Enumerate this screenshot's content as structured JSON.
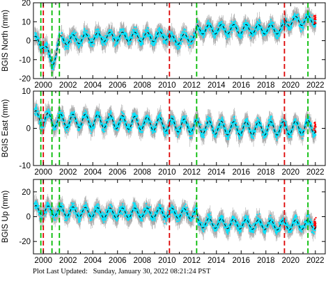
{
  "footer": {
    "label": "Plot Last Updated:",
    "timestamp": "Sunday, January 30, 2022 08:21:24 PST"
  },
  "colors": {
    "observations": "#00e5ff",
    "error_bars": "#aaaaaa",
    "model": "#000000",
    "equipment_change": "#00bb00",
    "earthquake_offset": "#dd0000",
    "recent_points": "#ff0000"
  },
  "chart_data": [
    {
      "type": "scatter",
      "ylabel": "BGIS North (mm)",
      "xlim": [
        1999.2,
        2022.8
      ],
      "ylim": [
        -20,
        20
      ],
      "yticks": [
        "-20",
        "-10",
        "0",
        "10",
        "20"
      ],
      "xticks": [
        "2000",
        "2002",
        "2004",
        "2006",
        "2008",
        "2010",
        "2012",
        "2014",
        "2016",
        "2018",
        "2020",
        "2022"
      ],
      "red_lines": [
        2000.0,
        2010.2,
        2019.5
      ],
      "green_lines": [
        1999.8,
        2000.7,
        2001.3,
        2012.4,
        2021.4
      ],
      "trend": [
        [
          1999.3,
          0
        ],
        [
          2000.1,
          -2
        ],
        [
          2000.7,
          -13
        ],
        [
          2001.3,
          0
        ],
        [
          2003,
          1
        ],
        [
          2005,
          2
        ],
        [
          2007,
          2
        ],
        [
          2009,
          2
        ],
        [
          2010.2,
          3
        ],
        [
          2010.3,
          0
        ],
        [
          2012.3,
          2
        ],
        [
          2012.4,
          6
        ],
        [
          2014,
          6
        ],
        [
          2016,
          6
        ],
        [
          2018,
          6
        ],
        [
          2019.5,
          6
        ],
        [
          2019.6,
          10
        ],
        [
          2022,
          11
        ]
      ],
      "amplitude": 2.5
    },
    {
      "type": "scatter",
      "ylabel": "BGIS East (mm)",
      "xlim": [
        1999.2,
        2022.8
      ],
      "ylim": [
        -10,
        10
      ],
      "yticks": [
        "-10",
        "0",
        "10"
      ],
      "xticks": [
        "2000",
        "2002",
        "2004",
        "2006",
        "2008",
        "2010",
        "2012",
        "2014",
        "2016",
        "2018",
        "2020",
        "2022"
      ],
      "red_lines": [
        2000.0,
        2010.2,
        2019.5
      ],
      "green_lines": [
        1999.8,
        2000.7,
        2001.3,
        2012.4,
        2021.4
      ],
      "trend": [
        [
          1999.3,
          3
        ],
        [
          2001,
          2
        ],
        [
          2004,
          2
        ],
        [
          2007,
          1.5
        ],
        [
          2010,
          1
        ],
        [
          2012.4,
          0.5
        ],
        [
          2015,
          0
        ],
        [
          2018,
          0
        ],
        [
          2019.5,
          0
        ],
        [
          2022,
          0.5
        ]
      ],
      "amplitude": 1.8
    },
    {
      "type": "scatter",
      "ylabel": "BGIS Up (mm)",
      "xlim": [
        1999.2,
        2022.8
      ],
      "ylim": [
        -30,
        30
      ],
      "yticks": [
        "-20",
        "0",
        "20"
      ],
      "xticks": [
        "2000",
        "2002",
        "2004",
        "2006",
        "2008",
        "2010",
        "2012",
        "2014",
        "2016",
        "2018",
        "2020",
        "2022"
      ],
      "red_lines": [
        2000.0,
        2010.2,
        2019.5
      ],
      "green_lines": [
        1999.8,
        2000.7,
        2001.3,
        2012.4,
        2021.4
      ],
      "trend": [
        [
          1999.3,
          5
        ],
        [
          2002,
          4
        ],
        [
          2005,
          3
        ],
        [
          2008,
          3
        ],
        [
          2010.2,
          3
        ],
        [
          2012.4,
          2
        ],
        [
          2012.5,
          -5
        ],
        [
          2016,
          -6
        ],
        [
          2019.5,
          -7
        ],
        [
          2022,
          -6
        ]
      ],
      "amplitude": 4
    }
  ]
}
